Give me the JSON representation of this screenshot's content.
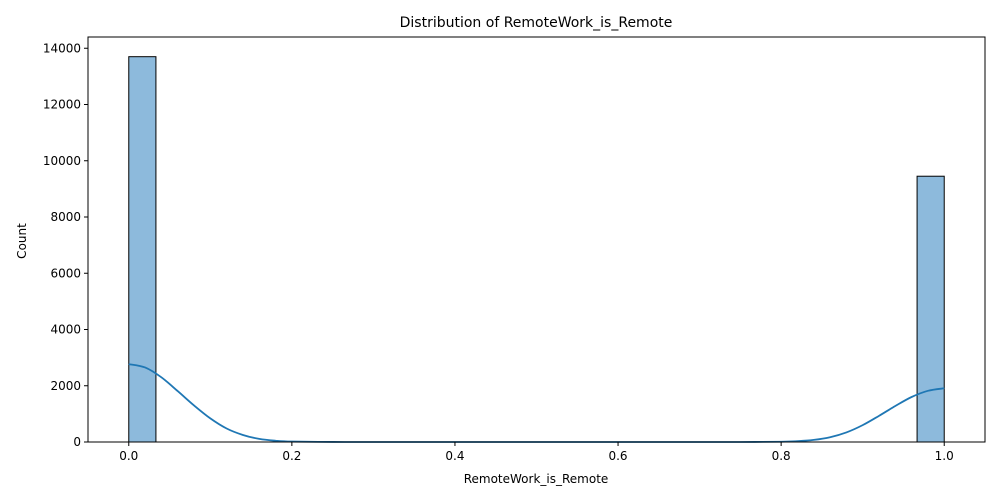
{
  "chart_data": {
    "type": "bar",
    "title": "Distribution of RemoteWork_is_Remote",
    "xlabel": "RemoteWork_is_Remote",
    "ylabel": "Count",
    "xlim": [
      -0.05,
      1.05
    ],
    "ylim": [
      0,
      14400
    ],
    "x_ticks": [
      "0.0",
      "0.2",
      "0.4",
      "0.6",
      "0.8",
      "1.0"
    ],
    "y_ticks": [
      "0",
      "2000",
      "4000",
      "6000",
      "8000",
      "10000",
      "12000",
      "14000"
    ],
    "bins": [
      {
        "x0": 0.0,
        "x1": 0.0333,
        "count": 13700
      },
      {
        "x0": 0.9667,
        "x1": 1.0,
        "count": 9450
      }
    ],
    "kde": {
      "x": [
        0.0,
        0.02,
        0.04,
        0.06,
        0.08,
        0.1,
        0.12,
        0.14,
        0.16,
        0.18,
        0.2,
        0.25,
        0.3,
        0.4,
        0.5,
        0.6,
        0.7,
        0.75,
        0.8,
        0.82,
        0.84,
        0.86,
        0.88,
        0.9,
        0.92,
        0.94,
        0.96,
        0.98,
        1.0
      ],
      "y": [
        2770,
        2650,
        2300,
        1810,
        1300,
        840,
        480,
        250,
        110,
        45,
        15,
        2,
        0,
        0,
        0,
        0,
        0,
        1,
        10,
        30,
        75,
        170,
        340,
        600,
        930,
        1280,
        1600,
        1820,
        1910
      ]
    },
    "colors": {
      "bar_fill": "#8dbadc",
      "bar_edge": "#000000",
      "kde_line": "#1f77b4"
    },
    "grid": false,
    "legend": "none"
  }
}
